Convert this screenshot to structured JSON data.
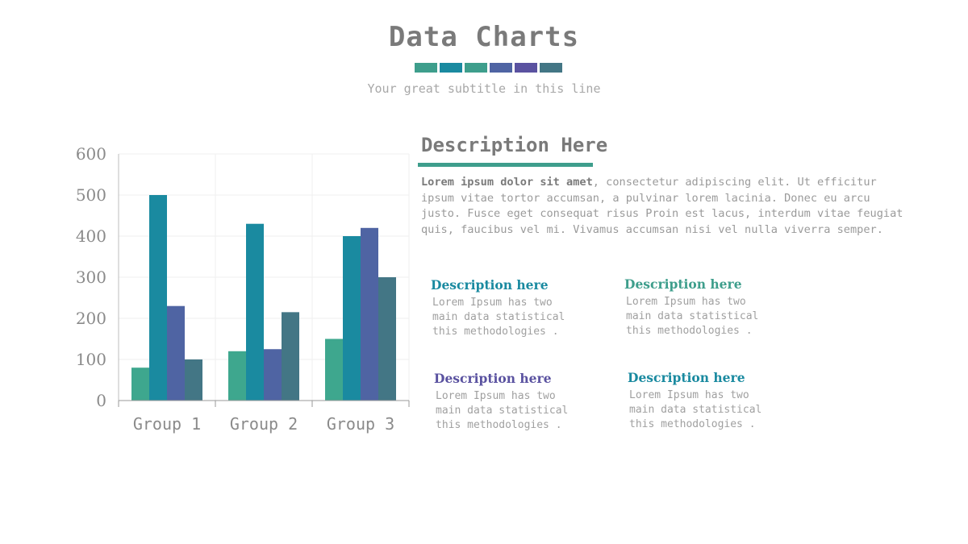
{
  "header": {
    "title": "Data Charts",
    "subtitle": "Your great subtitle in this line",
    "swatch_colors": [
      "#3e9e8c",
      "#1a8aa0",
      "#3e9e8c",
      "#4f64a3",
      "#5a52a0",
      "#437685"
    ]
  },
  "description": {
    "title": "Description Here",
    "lead_bold": "Lorem ipsum dolor sit amet",
    "lead_rest": ", consectetur adipiscing elit. Ut efficitur ipsum vitae tortor accumsan, a pulvinar lorem lacinia. Donec eu arcu justo. Fusce eget consequat risus Proin est lacus, interdum vitae feugiat quis, faucibus vel mi.  Vivamus accumsan nisi vel nulla viverra semper."
  },
  "cards": [
    {
      "title": "Description here",
      "text": "Lorem Ipsum has two\nmain data statistical\nthis methodologies .",
      "color": "#1a8aa0"
    },
    {
      "title": "Description here",
      "text": "Lorem Ipsum has two\nmain data statistical\nthis methodologies .",
      "color": "#3e9e8c"
    },
    {
      "title": "Description here",
      "text": "Lorem Ipsum has two\nmain data statistical\nthis methodologies .",
      "color": "#5a52a0"
    },
    {
      "title": "Description here",
      "text": "Lorem Ipsum has two\nmain data statistical\nthis methodologies .",
      "color": "#1a8aa0"
    }
  ],
  "chart_data": {
    "type": "bar",
    "categories": [
      "Group 1",
      "Group 2",
      "Group 3"
    ],
    "series": [
      {
        "values": [
          80,
          120,
          150
        ],
        "color": "#3ea78e"
      },
      {
        "values": [
          500,
          430,
          400
        ],
        "color": "#1a8aa0"
      },
      {
        "values": [
          230,
          125,
          420
        ],
        "color": "#4f64a3"
      },
      {
        "values": [
          100,
          215,
          300
        ],
        "color": "#437685"
      }
    ],
    "ylim": [
      0,
      600
    ],
    "yticks": [
      0,
      100,
      200,
      300,
      400,
      500,
      600
    ],
    "grid": true,
    "legend": "none"
  }
}
